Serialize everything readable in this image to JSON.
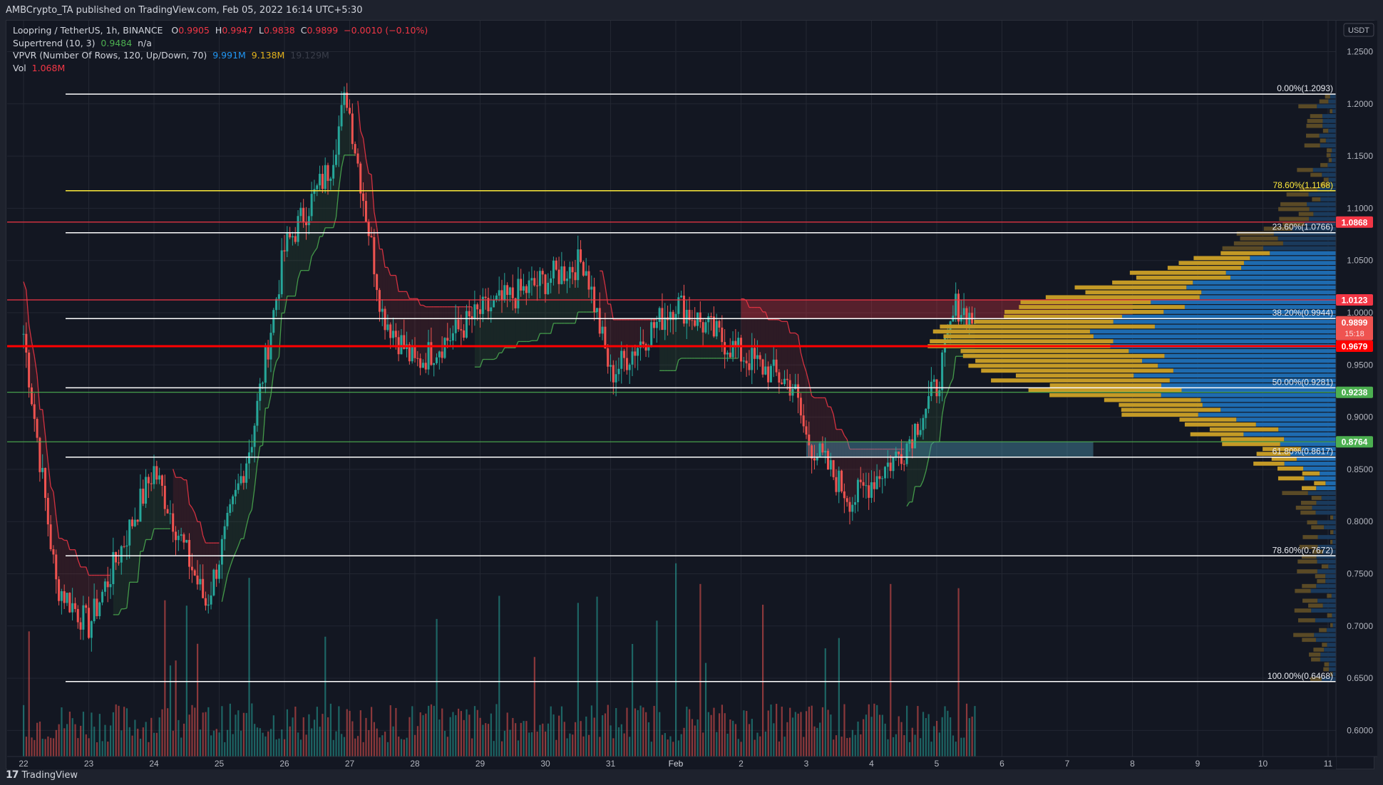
{
  "header": {
    "published": "AMBCrypto_TA published on TradingView.com, Feb 05, 2022 16:14 UTC+5:30"
  },
  "legend": {
    "symbol": "Loopring / TetherUS, 1h, BINANCE",
    "ohlc": {
      "o_label": "O",
      "o": "0.9905",
      "h_label": "H",
      "h": "0.9947",
      "l_label": "L",
      "l": "0.9838",
      "c_label": "C",
      "c": "0.9899",
      "change": "−0.0010 (−0.10%)"
    },
    "supertrend": {
      "label": "Supertrend (10, 3)",
      "value": "0.9484",
      "extra": "n/a"
    },
    "vpvr": {
      "label": "VPVR (Number Of Rows, 120, Up/Down, 70)",
      "up": "9.991M",
      "down": "9.138M",
      "total": "19.129M"
    },
    "vol": {
      "label": "Vol",
      "value": "1.068M"
    }
  },
  "footer": {
    "brand": "TradingView",
    "logo": "17"
  },
  "colors": {
    "background": "#131722",
    "up": "#26a69a",
    "down": "#ef5350",
    "supertrend_up": "#4caf50",
    "supertrend_down": "#f23645",
    "vpvr_up": "#1e6bb0",
    "vpvr_down": "#c49a26",
    "fib_white": "#ffffff",
    "fib_yellow": "#ffeb3b"
  },
  "chart_data": {
    "type": "candlestick",
    "title": "Loopring / TetherUS, 1h, BINANCE",
    "xlabel": "",
    "ylabel": "USDT",
    "currency_label": "USDT",
    "ylim": [
      0.59,
      1.27
    ],
    "y_ticks": [
      "1.2500",
      "1.2000",
      "1.1500",
      "1.1000",
      "1.0500",
      "1.0000",
      "0.9500",
      "0.9000",
      "0.8500",
      "0.8000",
      "0.7500",
      "0.7000",
      "0.6500",
      "0.6000"
    ],
    "x_ticks": [
      "22",
      "23",
      "24",
      "25",
      "26",
      "27",
      "28",
      "29",
      "30",
      "31",
      "Feb",
      "2",
      "3",
      "4",
      "5",
      "6",
      "7",
      "8",
      "9",
      "10",
      "11"
    ],
    "last_price": {
      "value": "0.9899",
      "countdown": "15:18"
    },
    "price_labels": [
      {
        "value": "1.0868",
        "color": "#f23645"
      },
      {
        "value": "1.0123",
        "color": "#f23645"
      },
      {
        "value": "0.9679",
        "color": "#ff0000"
      },
      {
        "value": "0.9238",
        "color": "#4caf50"
      },
      {
        "value": "0.8764",
        "color": "#4caf50"
      }
    ],
    "horizontal_lines": [
      {
        "price": 1.0868,
        "color": "#f23645"
      },
      {
        "price": 1.0123,
        "color": "#f23645"
      },
      {
        "price": 0.9679,
        "color": "#ff0000",
        "width": 3
      },
      {
        "price": 0.9238,
        "color": "#4caf50"
      },
      {
        "price": 0.8764,
        "color": "#4caf50"
      }
    ],
    "fibonacci": [
      {
        "label": "0.00%(1.2093)",
        "price": 1.2093,
        "color": "#ffffff"
      },
      {
        "label": "78.60%(1.1168)",
        "price": 1.1168,
        "color": "#ffeb3b"
      },
      {
        "label": "23.60%(1.0766)",
        "price": 1.0766,
        "color": "#ffffff"
      },
      {
        "label": "38.20%(0.9944)",
        "price": 0.9944,
        "color": "#ffffff"
      },
      {
        "label": "50.00%(0.9281)",
        "price": 0.9281,
        "color": "#ffffff"
      },
      {
        "label": "61.80%(0.8617)",
        "price": 0.8617,
        "color": "#ffffff"
      },
      {
        "label": "78.60%(0.7672)",
        "price": 0.7672,
        "color": "#ffffff"
      },
      {
        "label": "100.00%(0.6468)",
        "price": 0.6468,
        "color": "#ffffff"
      }
    ],
    "zones": [
      {
        "name": "resistance-box",
        "top": 1.0123,
        "bottom": 0.9944,
        "color": "rgba(242,54,69,0.30)",
        "from": "Feb 2",
        "to": "Feb 8"
      },
      {
        "name": "support-box",
        "top": 0.8764,
        "bottom": 0.8617,
        "color": "rgba(74,144,170,0.45)",
        "from": "Feb 3",
        "to": "Feb 7.4"
      }
    ],
    "series_key_points": [
      {
        "date": "Jan 22",
        "price": 0.98
      },
      {
        "date": "Jan 22.5",
        "price": 0.74
      },
      {
        "date": "Jan 23",
        "price": 0.7
      },
      {
        "date": "Jan 24",
        "price": 0.85
      },
      {
        "date": "Jan 24.8",
        "price": 0.72
      },
      {
        "date": "Jan 25.5",
        "price": 0.88
      },
      {
        "date": "Jan 26",
        "price": 1.06
      },
      {
        "date": "Jan 26.7",
        "price": 1.14
      },
      {
        "date": "Jan 26.95",
        "price": 1.21
      },
      {
        "date": "Jan 27.5",
        "price": 1.0
      },
      {
        "date": "Jan 28",
        "price": 0.95
      },
      {
        "date": "Jan 29",
        "price": 1.0
      },
      {
        "date": "Jan 30.6",
        "price": 1.05
      },
      {
        "date": "Jan 31",
        "price": 0.94
      },
      {
        "date": "Feb 1",
        "price": 1.01
      },
      {
        "date": "Feb 2",
        "price": 0.96
      },
      {
        "date": "Feb 2.8",
        "price": 0.93
      },
      {
        "date": "Feb 3",
        "price": 0.88
      },
      {
        "date": "Feb 3.7",
        "price": 0.82
      },
      {
        "date": "Feb 4.5",
        "price": 0.87
      },
      {
        "date": "Feb 5",
        "price": 0.93
      },
      {
        "date": "Feb 5.3",
        "price": 1.008
      },
      {
        "date": "Feb 5.6",
        "price": 0.9899
      }
    ],
    "vpvr_summary": {
      "up": "9.991M",
      "down": "9.138M",
      "total": "19.129M",
      "poc": 0.9679
    }
  }
}
